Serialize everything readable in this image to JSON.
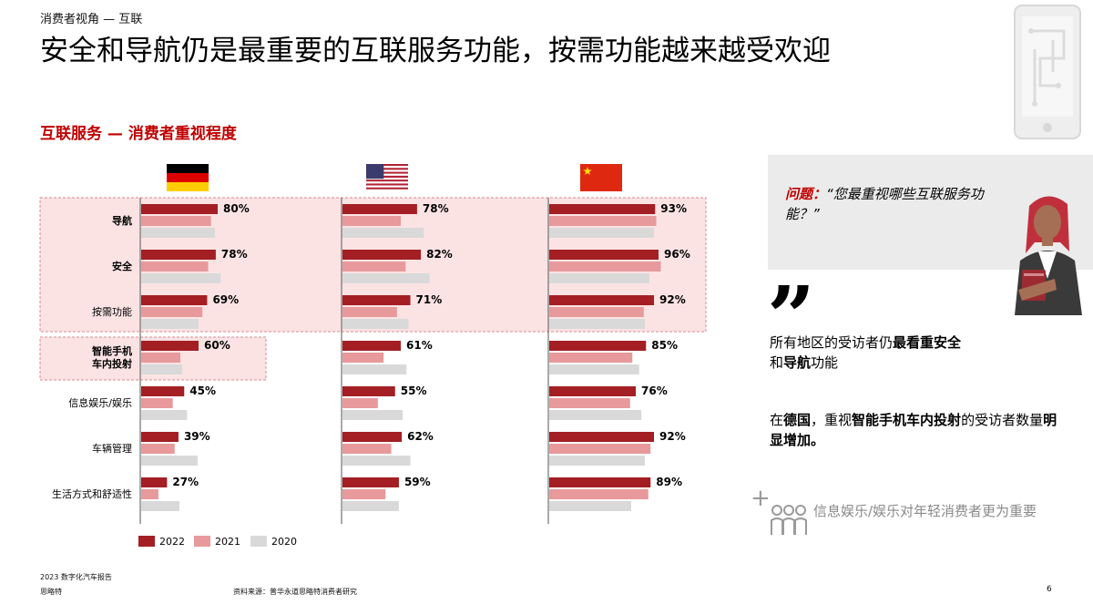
{
  "header": {
    "breadcrumb": "消费者视角 — 互联",
    "title": "安全和导航仍是最重要的互联服务功能，按需功能越来越受欢迎",
    "chart_subtitle": "互联服务 — 消费者重视程度"
  },
  "colors": {
    "brand_red": "#c00000",
    "bar_2022": "#a31f24",
    "bar_2021": "#e8999b",
    "bar_2020": "#d9d9d9",
    "highlight_fill": "#fbe3e4",
    "highlight_border": "#d98a8f"
  },
  "chart_data": {
    "type": "bar",
    "orientation": "horizontal",
    "title": "互联服务 — 消费者重视程度",
    "categories": [
      "导航",
      "安全",
      "按需功能",
      "智能手机车内投射",
      "信息娱乐/娱乐",
      "车辆管理",
      "生活方式和舒适性"
    ],
    "category_display": [
      "导航",
      "安全",
      "按需功能",
      "智能手机\n车内投射",
      "信息娱乐/娱乐",
      "车辆管理",
      "生活方式和舒适性"
    ],
    "bold_categories": [
      "导航",
      "安全",
      "智能手机车内投射"
    ],
    "legend": [
      "2022",
      "2021",
      "2020"
    ],
    "legend_position": "bottom",
    "x_range": [
      0,
      100
    ],
    "panels": [
      {
        "name": "德国",
        "flag": "germany-flag",
        "series": [
          {
            "name": "2022",
            "values": [
              80,
              78,
              69,
              60,
              45,
              39,
              27
            ],
            "labels": [
              "80%",
              "78%",
              "69%",
              "60%",
              "45%",
              "39%",
              "27%"
            ]
          },
          {
            "name": "2021",
            "values": [
              73,
              70,
              64,
              41,
              33,
              35,
              18
            ]
          },
          {
            "name": "2020",
            "values": [
              77,
              83,
              60,
              43,
              48,
              59,
              40
            ]
          }
        ]
      },
      {
        "name": "美国",
        "flag": "usa-flag",
        "series": [
          {
            "name": "2022",
            "values": [
              78,
              82,
              71,
              61,
              55,
              62,
              59
            ],
            "labels": [
              "78%",
              "82%",
              "71%",
              "61%",
              "55%",
              "62%",
              "59%"
            ]
          },
          {
            "name": "2021",
            "values": [
              61,
              66,
              57,
              43,
              37,
              51,
              45
            ]
          },
          {
            "name": "2020",
            "values": [
              85,
              91,
              69,
              67,
              63,
              71,
              59
            ]
          }
        ]
      },
      {
        "name": "中国",
        "flag": "china-flag",
        "series": [
          {
            "name": "2022",
            "values": [
              93,
              96,
              92,
              85,
              76,
              92,
              89
            ],
            "labels": [
              "93%",
              "96%",
              "92%",
              "85%",
              "76%",
              "92%",
              "89%"
            ]
          },
          {
            "name": "2021",
            "values": [
              94,
              98,
              83,
              73,
              71,
              89,
              87
            ]
          },
          {
            "name": "2020",
            "values": [
              92,
              88,
              84,
              79,
              81,
              84,
              72
            ]
          }
        ]
      }
    ]
  },
  "sidebar": {
    "question_label": "问题：",
    "question_text": "“您最重视哪些互联服务功能？”",
    "finding1": {
      "prefix": "所有地区的受访者仍",
      "bold1": "最看重安全",
      "middle": "和",
      "bold2": "导航",
      "suffix": "功能"
    },
    "finding2": {
      "part1": "在",
      "bold1": "德国",
      "part2": "，重视",
      "bold2": "智能手机车内投射",
      "part3": "的受访者数量",
      "bold3": "明显增加。"
    },
    "insight": "信息娱乐/娱乐对年轻消费者更为重要"
  },
  "footer": {
    "report": "2023 数字化汽车报告",
    "brand": "思略特",
    "source": "资料来源：普华永道思略特消费者研究",
    "page_number": "6"
  }
}
